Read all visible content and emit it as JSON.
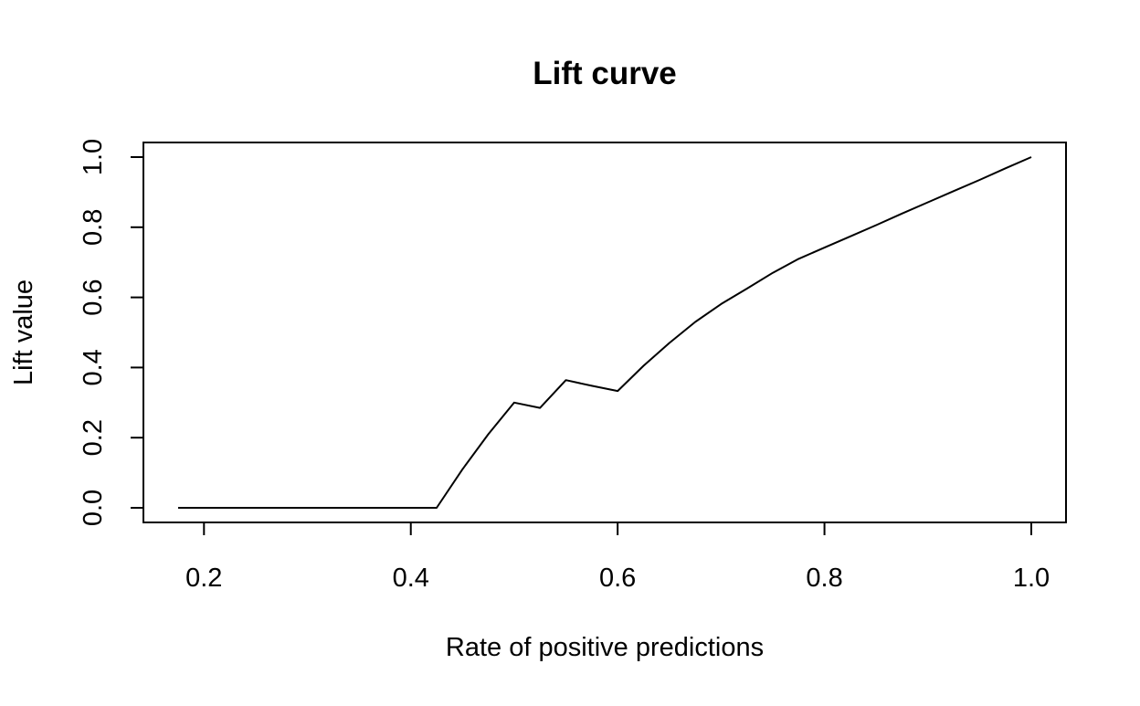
{
  "chart_data": {
    "type": "line",
    "title": "Lift curve",
    "xlabel": "Rate of positive predictions",
    "ylabel": "Lift value",
    "xlim": [
      0.175,
      1.0
    ],
    "ylim": [
      0.0,
      1.0
    ],
    "x_ticks": [
      0.2,
      0.4,
      0.6,
      0.8,
      1.0
    ],
    "x_tick_labels": [
      "0.2",
      "0.4",
      "0.6",
      "0.8",
      "1.0"
    ],
    "y_ticks": [
      0.0,
      0.2,
      0.4,
      0.6,
      0.8,
      1.0
    ],
    "y_tick_labels": [
      "0.0",
      "0.2",
      "0.4",
      "0.6",
      "0.8",
      "1.0"
    ],
    "grid": false,
    "line_color": "#000000",
    "series": [
      {
        "x": [
          0.175,
          0.2,
          0.225,
          0.25,
          0.275,
          0.3,
          0.325,
          0.35,
          0.375,
          0.4,
          0.425,
          0.45,
          0.475,
          0.5,
          0.525,
          0.55,
          0.575,
          0.6,
          0.625,
          0.65,
          0.675,
          0.7,
          0.725,
          0.75,
          0.775,
          0.8,
          0.825,
          0.85,
          0.875,
          0.9,
          0.925,
          0.95,
          0.975,
          1.0
        ],
        "y": [
          0.0,
          0.0,
          0.0,
          0.0,
          0.0,
          0.0,
          0.0,
          0.0,
          0.0,
          0.0,
          0.0,
          0.11,
          0.21,
          0.3,
          0.285,
          0.364,
          0.348,
          0.333,
          0.405,
          0.47,
          0.53,
          0.581,
          0.625,
          0.67,
          0.71,
          0.742,
          0.774,
          0.806,
          0.839,
          0.871,
          0.903,
          0.935,
          0.968,
          1.0
        ]
      }
    ]
  }
}
